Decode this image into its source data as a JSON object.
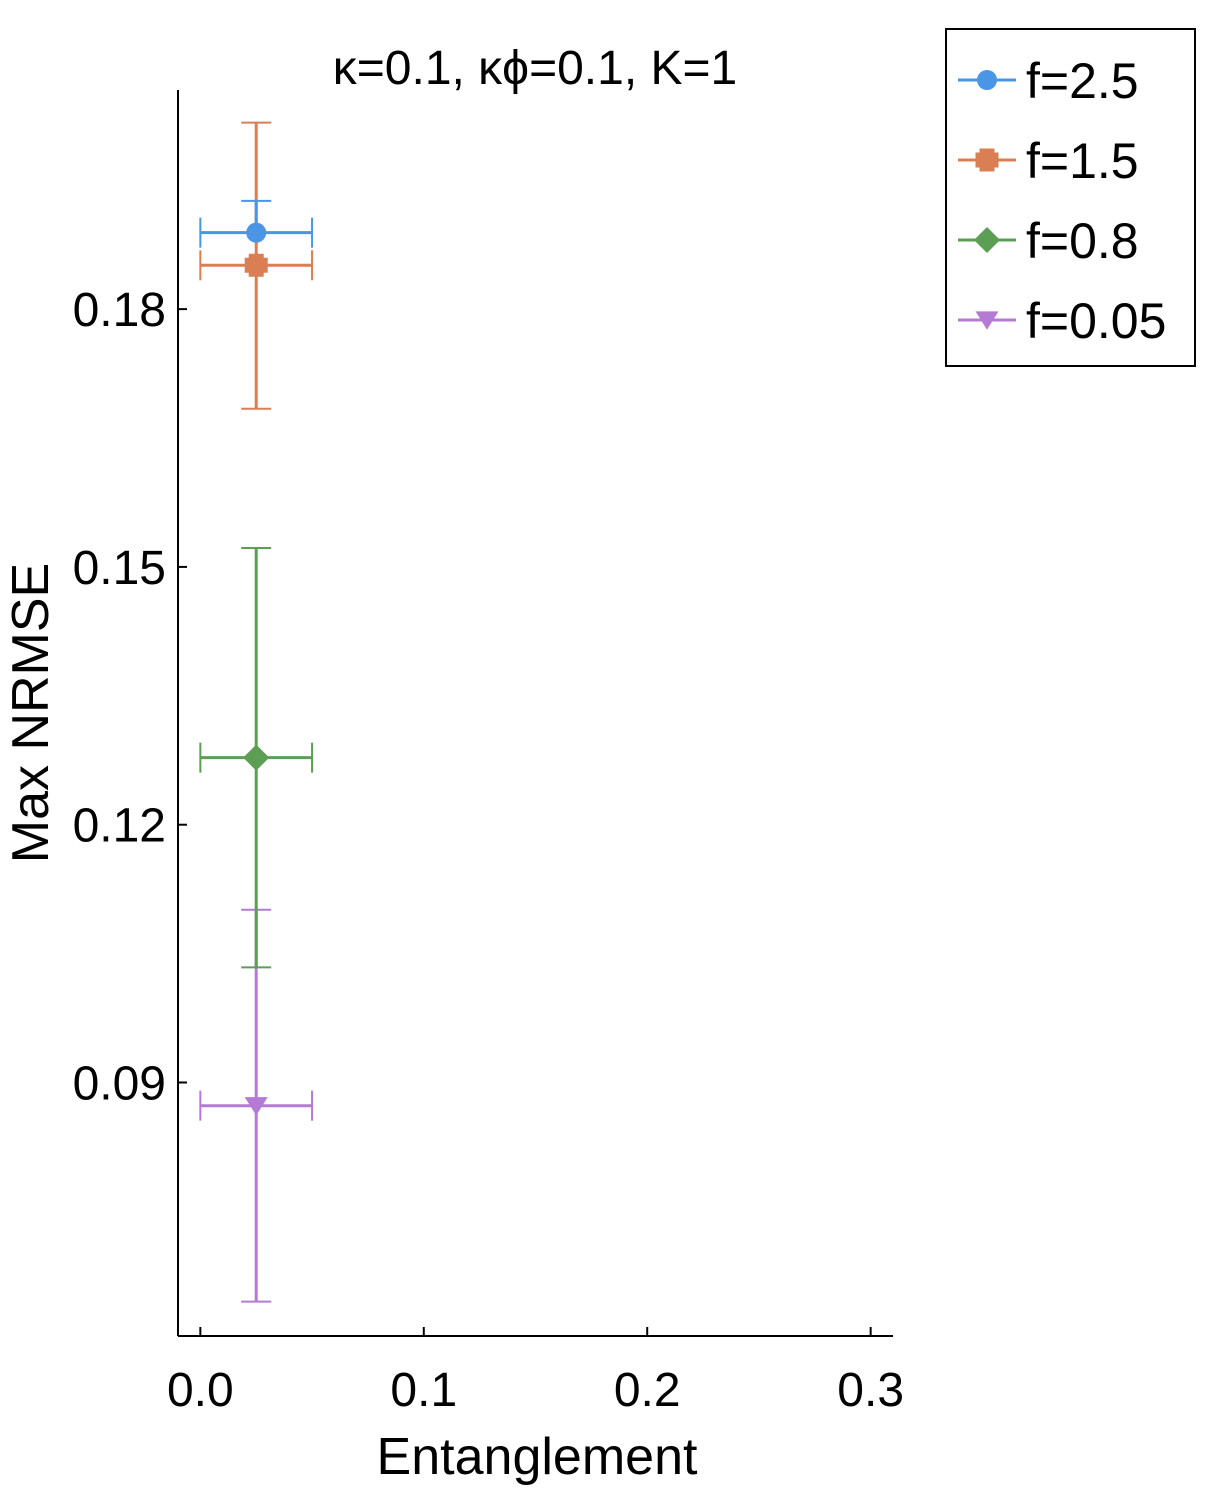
{
  "chart_data": {
    "type": "scatter",
    "title": "κ=0.1, κϕ=0.1, K=1",
    "xlabel": "Entanglement",
    "ylabel": "Max NRMSE",
    "xlim": [
      -0.01,
      0.31
    ],
    "ylim": [
      0.0605,
      0.2055
    ],
    "xticks": [
      0.0,
      0.1,
      0.2,
      0.3
    ],
    "xtick_labels": [
      "0.0",
      "0.1",
      "0.2",
      "0.3"
    ],
    "yticks": [
      0.09,
      0.12,
      0.15,
      0.18
    ],
    "ytick_labels": [
      "0.09",
      "0.12",
      "0.15",
      "0.18"
    ],
    "grid": false,
    "legend_position": "outside-top-right",
    "series": [
      {
        "name": "f=2.5",
        "color": "#4a95e6",
        "marker": "circle",
        "x": 0.025,
        "y": 0.1889,
        "x_err": 0.025,
        "y_err_low": 0.0,
        "y_err_high": 0.0037
      },
      {
        "name": "f=1.5",
        "color": "#d97f53",
        "marker": "cross",
        "x": 0.025,
        "y": 0.1851,
        "x_err": 0.025,
        "y_err_low": 0.0167,
        "y_err_high": 0.0166
      },
      {
        "name": "f=0.8",
        "color": "#5b9e54",
        "marker": "diamond",
        "x": 0.025,
        "y": 0.1278,
        "x_err": 0.025,
        "y_err_low": 0.0244,
        "y_err_high": 0.0244
      },
      {
        "name": "f=0.05",
        "color": "#b57ad3",
        "marker": "triangle-down",
        "x": 0.025,
        "y": 0.0873,
        "x_err": 0.025,
        "y_err_low": 0.0228,
        "y_err_high": 0.0228
      }
    ]
  }
}
